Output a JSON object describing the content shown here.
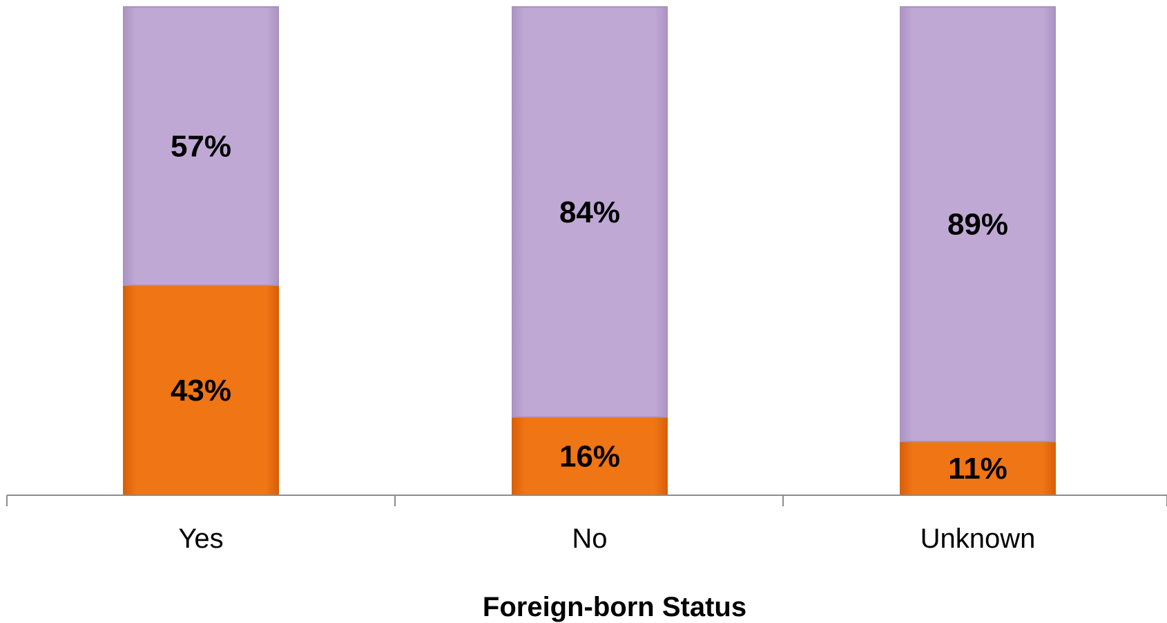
{
  "chart_data": {
    "type": "bar",
    "stacked": true,
    "normalized": true,
    "categories": [
      "Yes",
      "No",
      "Unknown"
    ],
    "series": [
      {
        "values": [
          43,
          16,
          11
        ],
        "color": "#f07514"
      },
      {
        "values": [
          57,
          84,
          89
        ],
        "color": "#bfa9d4"
      }
    ],
    "value_labels": [
      [
        "43%",
        "16%",
        "11%"
      ],
      [
        "57%",
        "84%",
        "89%"
      ]
    ],
    "xlabel": "Foreign-born Status",
    "ylabel": "",
    "ylim": [
      0,
      100
    ],
    "grid": false,
    "legend": "none"
  }
}
